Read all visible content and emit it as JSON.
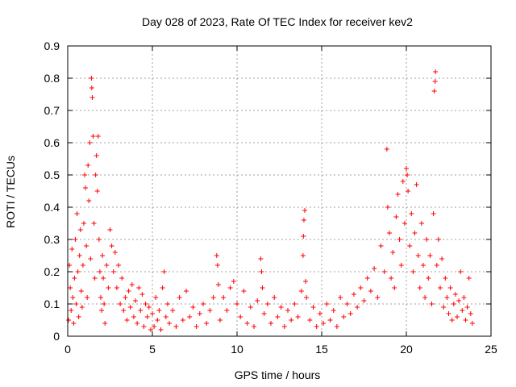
{
  "chart_data": {
    "type": "scatter",
    "title": "Day 028 of 2023, Rate Of TEC Index for receiver kev2",
    "xlabel": "GPS time / hours",
    "ylabel": "ROTI / TECUs",
    "xlim": [
      0,
      25
    ],
    "ylim": [
      0,
      0.9
    ],
    "x_ticks": [
      0,
      5,
      10,
      15,
      20,
      25
    ],
    "x_tick_labels": [
      "0",
      "5",
      "10",
      "15",
      "20",
      "25"
    ],
    "y_ticks": [
      0,
      0.1,
      0.2,
      0.3,
      0.4,
      0.5,
      0.6,
      0.7,
      0.8,
      0.9
    ],
    "y_tick_labels": [
      "0",
      "0.1",
      "0.2",
      "0.3",
      "0.4",
      "0.5",
      "0.6",
      "0.7",
      "0.8",
      "0.9"
    ],
    "grid": true,
    "marker": "plus",
    "color": "#ff0000",
    "series": [
      {
        "points": [
          [
            0.05,
            0.05
          ],
          [
            0.1,
            0.22
          ],
          [
            0.15,
            0.15
          ],
          [
            0.2,
            0.08
          ],
          [
            0.25,
            0.27
          ],
          [
            0.3,
            0.12
          ],
          [
            0.35,
            0.04
          ],
          [
            0.4,
            0.18
          ],
          [
            0.45,
            0.3
          ],
          [
            0.5,
            0.1
          ],
          [
            0.55,
            0.38
          ],
          [
            0.6,
            0.2
          ],
          [
            0.65,
            0.06
          ],
          [
            0.7,
            0.25
          ],
          [
            0.75,
            0.33
          ],
          [
            0.8,
            0.14
          ],
          [
            0.85,
            0.09
          ],
          [
            0.9,
            0.22
          ],
          [
            0.95,
            0.35
          ],
          [
            1.0,
            0.5
          ],
          [
            1.05,
            0.46
          ],
          [
            1.1,
            0.28
          ],
          [
            1.15,
            0.12
          ],
          [
            1.2,
            0.53
          ],
          [
            1.25,
            0.42
          ],
          [
            1.3,
            0.6
          ],
          [
            1.35,
            0.24
          ],
          [
            1.4,
            0.8
          ],
          [
            1.42,
            0.77
          ],
          [
            1.45,
            0.74
          ],
          [
            1.5,
            0.62
          ],
          [
            1.55,
            0.35
          ],
          [
            1.6,
            0.18
          ],
          [
            1.65,
            0.5
          ],
          [
            1.7,
            0.56
          ],
          [
            1.75,
            0.45
          ],
          [
            1.8,
            0.62
          ],
          [
            1.85,
            0.3
          ],
          [
            1.9,
            0.2
          ],
          [
            1.95,
            0.12
          ],
          [
            2.0,
            0.08
          ],
          [
            2.05,
            0.25
          ],
          [
            2.1,
            0.18
          ],
          [
            2.15,
            0.1
          ],
          [
            2.2,
            0.04
          ],
          [
            2.3,
            0.22
          ],
          [
            2.4,
            0.15
          ],
          [
            2.5,
            0.33
          ],
          [
            2.6,
            0.28
          ],
          [
            2.7,
            0.2
          ],
          [
            2.8,
            0.26
          ],
          [
            2.9,
            0.15
          ],
          [
            3.0,
            0.22
          ],
          [
            3.1,
            0.1
          ],
          [
            3.2,
            0.18
          ],
          [
            3.3,
            0.08
          ],
          [
            3.4,
            0.12
          ],
          [
            3.5,
            0.05
          ],
          [
            3.6,
            0.14
          ],
          [
            3.7,
            0.09
          ],
          [
            3.8,
            0.16
          ],
          [
            3.9,
            0.06
          ],
          [
            4.0,
            0.11
          ],
          [
            4.1,
            0.04
          ],
          [
            4.2,
            0.15
          ],
          [
            4.3,
            0.08
          ],
          [
            4.4,
            0.13
          ],
          [
            4.5,
            0.03
          ],
          [
            4.6,
            0.1
          ],
          [
            4.7,
            0.06
          ],
          [
            4.8,
            0.09
          ],
          [
            4.9,
            0.02
          ],
          [
            5.0,
            0.07
          ],
          [
            5.1,
            0.03
          ],
          [
            5.2,
            0.12
          ],
          [
            5.3,
            0.05
          ],
          [
            5.4,
            0.08
          ],
          [
            5.5,
            0.02
          ],
          [
            5.6,
            0.15
          ],
          [
            5.7,
            0.2
          ],
          [
            5.8,
            0.06
          ],
          [
            5.9,
            0.1
          ],
          [
            6.0,
            0.04
          ],
          [
            6.2,
            0.08
          ],
          [
            6.4,
            0.03
          ],
          [
            6.6,
            0.12
          ],
          [
            6.8,
            0.05
          ],
          [
            7.0,
            0.14
          ],
          [
            7.2,
            0.06
          ],
          [
            7.4,
            0.09
          ],
          [
            7.6,
            0.03
          ],
          [
            7.8,
            0.07
          ],
          [
            8.0,
            0.1
          ],
          [
            8.2,
            0.04
          ],
          [
            8.4,
            0.08
          ],
          [
            8.6,
            0.12
          ],
          [
            8.8,
            0.25
          ],
          [
            8.85,
            0.22
          ],
          [
            8.9,
            0.16
          ],
          [
            9.0,
            0.05
          ],
          [
            9.2,
            0.12
          ],
          [
            9.4,
            0.08
          ],
          [
            9.6,
            0.15
          ],
          [
            9.8,
            0.17
          ],
          [
            10.0,
            0.1
          ],
          [
            10.2,
            0.06
          ],
          [
            10.4,
            0.14
          ],
          [
            10.6,
            0.04
          ],
          [
            10.8,
            0.09
          ],
          [
            11.0,
            0.03
          ],
          [
            11.2,
            0.11
          ],
          [
            11.4,
            0.24
          ],
          [
            11.45,
            0.2
          ],
          [
            11.5,
            0.15
          ],
          [
            11.6,
            0.07
          ],
          [
            11.8,
            0.1
          ],
          [
            12.0,
            0.04
          ],
          [
            12.2,
            0.12
          ],
          [
            12.4,
            0.06
          ],
          [
            12.6,
            0.09
          ],
          [
            12.8,
            0.03
          ],
          [
            13.0,
            0.08
          ],
          [
            13.2,
            0.05
          ],
          [
            13.4,
            0.1
          ],
          [
            13.6,
            0.06
          ],
          [
            13.8,
            0.14
          ],
          [
            13.9,
            0.25
          ],
          [
            13.92,
            0.31
          ],
          [
            13.95,
            0.36
          ],
          [
            14.0,
            0.39
          ],
          [
            14.05,
            0.17
          ],
          [
            14.1,
            0.12
          ],
          [
            14.3,
            0.05
          ],
          [
            14.5,
            0.09
          ],
          [
            14.7,
            0.03
          ],
          [
            14.9,
            0.07
          ],
          [
            15.1,
            0.04
          ],
          [
            15.3,
            0.1
          ],
          [
            15.5,
            0.05
          ],
          [
            15.7,
            0.08
          ],
          [
            15.9,
            0.03
          ],
          [
            16.1,
            0.12
          ],
          [
            16.3,
            0.06
          ],
          [
            16.5,
            0.1
          ],
          [
            16.7,
            0.07
          ],
          [
            16.9,
            0.13
          ],
          [
            17.1,
            0.09
          ],
          [
            17.3,
            0.15
          ],
          [
            17.5,
            0.11
          ],
          [
            17.7,
            0.18
          ],
          [
            17.9,
            0.14
          ],
          [
            18.1,
            0.21
          ],
          [
            18.3,
            0.12
          ],
          [
            18.5,
            0.28
          ],
          [
            18.7,
            0.2
          ],
          [
            18.85,
            0.58
          ],
          [
            18.9,
            0.4
          ],
          [
            19.0,
            0.32
          ],
          [
            19.1,
            0.18
          ],
          [
            19.2,
            0.26
          ],
          [
            19.3,
            0.15
          ],
          [
            19.4,
            0.37
          ],
          [
            19.5,
            0.44
          ],
          [
            19.6,
            0.3
          ],
          [
            19.7,
            0.22
          ],
          [
            19.8,
            0.48
          ],
          [
            19.9,
            0.35
          ],
          [
            20.0,
            0.52
          ],
          [
            20.05,
            0.5
          ],
          [
            20.1,
            0.45
          ],
          [
            20.2,
            0.28
          ],
          [
            20.3,
            0.38
          ],
          [
            20.4,
            0.2
          ],
          [
            20.5,
            0.32
          ],
          [
            20.6,
            0.47
          ],
          [
            20.7,
            0.25
          ],
          [
            20.8,
            0.15
          ],
          [
            20.9,
            0.35
          ],
          [
            21.0,
            0.22
          ],
          [
            21.1,
            0.12
          ],
          [
            21.2,
            0.3
          ],
          [
            21.3,
            0.18
          ],
          [
            21.4,
            0.25
          ],
          [
            21.5,
            0.1
          ],
          [
            21.6,
            0.38
          ],
          [
            21.65,
            0.76
          ],
          [
            21.7,
            0.79
          ],
          [
            21.72,
            0.82
          ],
          [
            21.8,
            0.22
          ],
          [
            21.9,
            0.3
          ],
          [
            22.0,
            0.15
          ],
          [
            22.1,
            0.24
          ],
          [
            22.2,
            0.09
          ],
          [
            22.3,
            0.18
          ],
          [
            22.4,
            0.12
          ],
          [
            22.5,
            0.07
          ],
          [
            22.6,
            0.15
          ],
          [
            22.7,
            0.05
          ],
          [
            22.8,
            0.1
          ],
          [
            22.9,
            0.13
          ],
          [
            23.0,
            0.06
          ],
          [
            23.1,
            0.11
          ],
          [
            23.2,
            0.2
          ],
          [
            23.3,
            0.08
          ],
          [
            23.4,
            0.12
          ],
          [
            23.5,
            0.05
          ],
          [
            23.6,
            0.09
          ],
          [
            23.7,
            0.18
          ],
          [
            23.8,
            0.07
          ],
          [
            23.9,
            0.04
          ]
        ]
      }
    ]
  }
}
